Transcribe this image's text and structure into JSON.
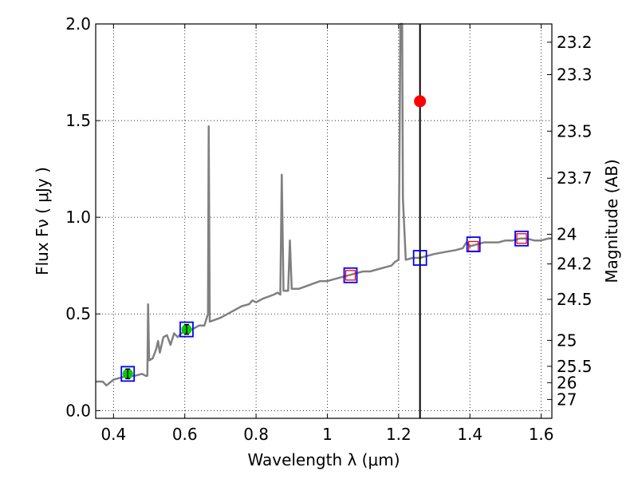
{
  "chart_data": {
    "type": "line",
    "xlabel": "Wavelength  λ (μm)",
    "ylabel": "Flux  Fν  ( μJy )",
    "y2label": "Magnitude (AB)",
    "xlim": [
      0.35,
      1.63
    ],
    "ylim": [
      -0.04,
      2.0
    ],
    "grid": true,
    "x_ticks": [
      0.4,
      0.6,
      0.8,
      1.0,
      1.2,
      1.4,
      1.6
    ],
    "x_tick_labels": [
      "0.4",
      "0.6",
      "0.8",
      "1",
      "1.2",
      "1.4",
      "1.6"
    ],
    "y_ticks": [
      0.0,
      0.5,
      1.0,
      1.5,
      2.0
    ],
    "y_tick_labels": [
      "0.0",
      "0.5",
      "1.0",
      "1.5",
      "2.0"
    ],
    "y2_tick_labels": [
      "23.2",
      "23.3",
      "23.5",
      "23.7",
      "24",
      "24.2",
      "24.5",
      "25",
      "25.5",
      "26",
      "27"
    ],
    "colors": {
      "spectrum": "#808080",
      "marker_line": "#000000",
      "photometry_box": "#0000ff",
      "model_box": "#ff0000",
      "detection_point": "#00cc00",
      "highlight_point": "#ff0000"
    },
    "series": [
      {
        "points": [
          [
            0.35,
            0.15
          ],
          [
            0.37,
            0.15
          ],
          [
            0.38,
            0.13
          ],
          [
            0.4,
            0.16
          ],
          [
            0.42,
            0.17
          ],
          [
            0.44,
            0.18
          ],
          [
            0.46,
            0.18
          ],
          [
            0.48,
            0.19
          ],
          [
            0.49,
            0.18
          ],
          [
            0.495,
            0.18
          ],
          [
            0.497,
            0.55
          ],
          [
            0.5,
            0.26
          ],
          [
            0.51,
            0.27
          ],
          [
            0.52,
            0.32
          ],
          [
            0.525,
            0.36
          ],
          [
            0.53,
            0.3
          ],
          [
            0.54,
            0.38
          ],
          [
            0.55,
            0.39
          ],
          [
            0.56,
            0.34
          ],
          [
            0.57,
            0.4
          ],
          [
            0.58,
            0.38
          ],
          [
            0.59,
            0.4
          ],
          [
            0.6,
            0.41
          ],
          [
            0.62,
            0.42
          ],
          [
            0.64,
            0.44
          ],
          [
            0.655,
            0.44
          ],
          [
            0.66,
            0.47
          ],
          [
            0.665,
            0.5
          ],
          [
            0.667,
            1.47
          ],
          [
            0.67,
            0.46
          ],
          [
            0.7,
            0.48
          ],
          [
            0.73,
            0.51
          ],
          [
            0.76,
            0.54
          ],
          [
            0.78,
            0.55
          ],
          [
            0.79,
            0.57
          ],
          [
            0.8,
            0.56
          ],
          [
            0.82,
            0.58
          ],
          [
            0.85,
            0.6
          ],
          [
            0.86,
            0.61
          ],
          [
            0.868,
            0.6
          ],
          [
            0.872,
            1.22
          ],
          [
            0.877,
            0.62
          ],
          [
            0.885,
            0.62
          ],
          [
            0.89,
            0.62
          ],
          [
            0.895,
            0.88
          ],
          [
            0.9,
            0.63
          ],
          [
            0.92,
            0.63
          ],
          [
            0.95,
            0.65
          ],
          [
            0.98,
            0.67
          ],
          [
            1.0,
            0.67
          ],
          [
            1.02,
            0.68
          ],
          [
            1.04,
            0.69
          ],
          [
            1.06,
            0.7
          ],
          [
            1.08,
            0.71
          ],
          [
            1.1,
            0.72
          ],
          [
            1.12,
            0.72
          ],
          [
            1.14,
            0.73
          ],
          [
            1.16,
            0.74
          ],
          [
            1.18,
            0.75
          ],
          [
            1.19,
            0.77
          ],
          [
            1.2,
            0.78
          ],
          [
            1.202,
            1.2
          ],
          [
            1.205,
            2.0
          ],
          [
            1.21,
            2.0
          ],
          [
            1.212,
            1.1
          ],
          [
            1.22,
            0.78
          ],
          [
            1.24,
            0.79
          ],
          [
            1.26,
            0.79
          ],
          [
            1.28,
            0.8
          ],
          [
            1.3,
            0.81
          ],
          [
            1.33,
            0.82
          ],
          [
            1.36,
            0.83
          ],
          [
            1.38,
            0.84
          ],
          [
            1.39,
            0.87
          ],
          [
            1.4,
            0.85
          ],
          [
            1.42,
            0.86
          ],
          [
            1.44,
            0.87
          ],
          [
            1.46,
            0.87
          ],
          [
            1.48,
            0.87
          ],
          [
            1.5,
            0.88
          ],
          [
            1.52,
            0.88
          ],
          [
            1.54,
            0.89
          ],
          [
            1.56,
            0.89
          ],
          [
            1.58,
            0.88
          ],
          [
            1.6,
            0.88
          ],
          [
            1.62,
            0.89
          ],
          [
            1.63,
            0.89
          ]
        ]
      }
    ],
    "vertical_line_x": 1.26,
    "blue_boxes": [
      [
        0.44,
        0.19
      ],
      [
        0.605,
        0.42
      ],
      [
        1.065,
        0.7
      ],
      [
        1.26,
        0.79
      ],
      [
        1.41,
        0.86
      ],
      [
        1.545,
        0.89
      ]
    ],
    "red_boxes": [
      [
        1.065,
        0.7
      ],
      [
        1.41,
        0.85
      ],
      [
        1.545,
        0.89
      ]
    ],
    "green_points": [
      {
        "x": 0.44,
        "y": 0.19,
        "err": 0.025
      },
      {
        "x": 0.605,
        "y": 0.42,
        "err": 0.025
      }
    ],
    "red_point": {
      "x": 1.26,
      "y": 1.6
    }
  }
}
